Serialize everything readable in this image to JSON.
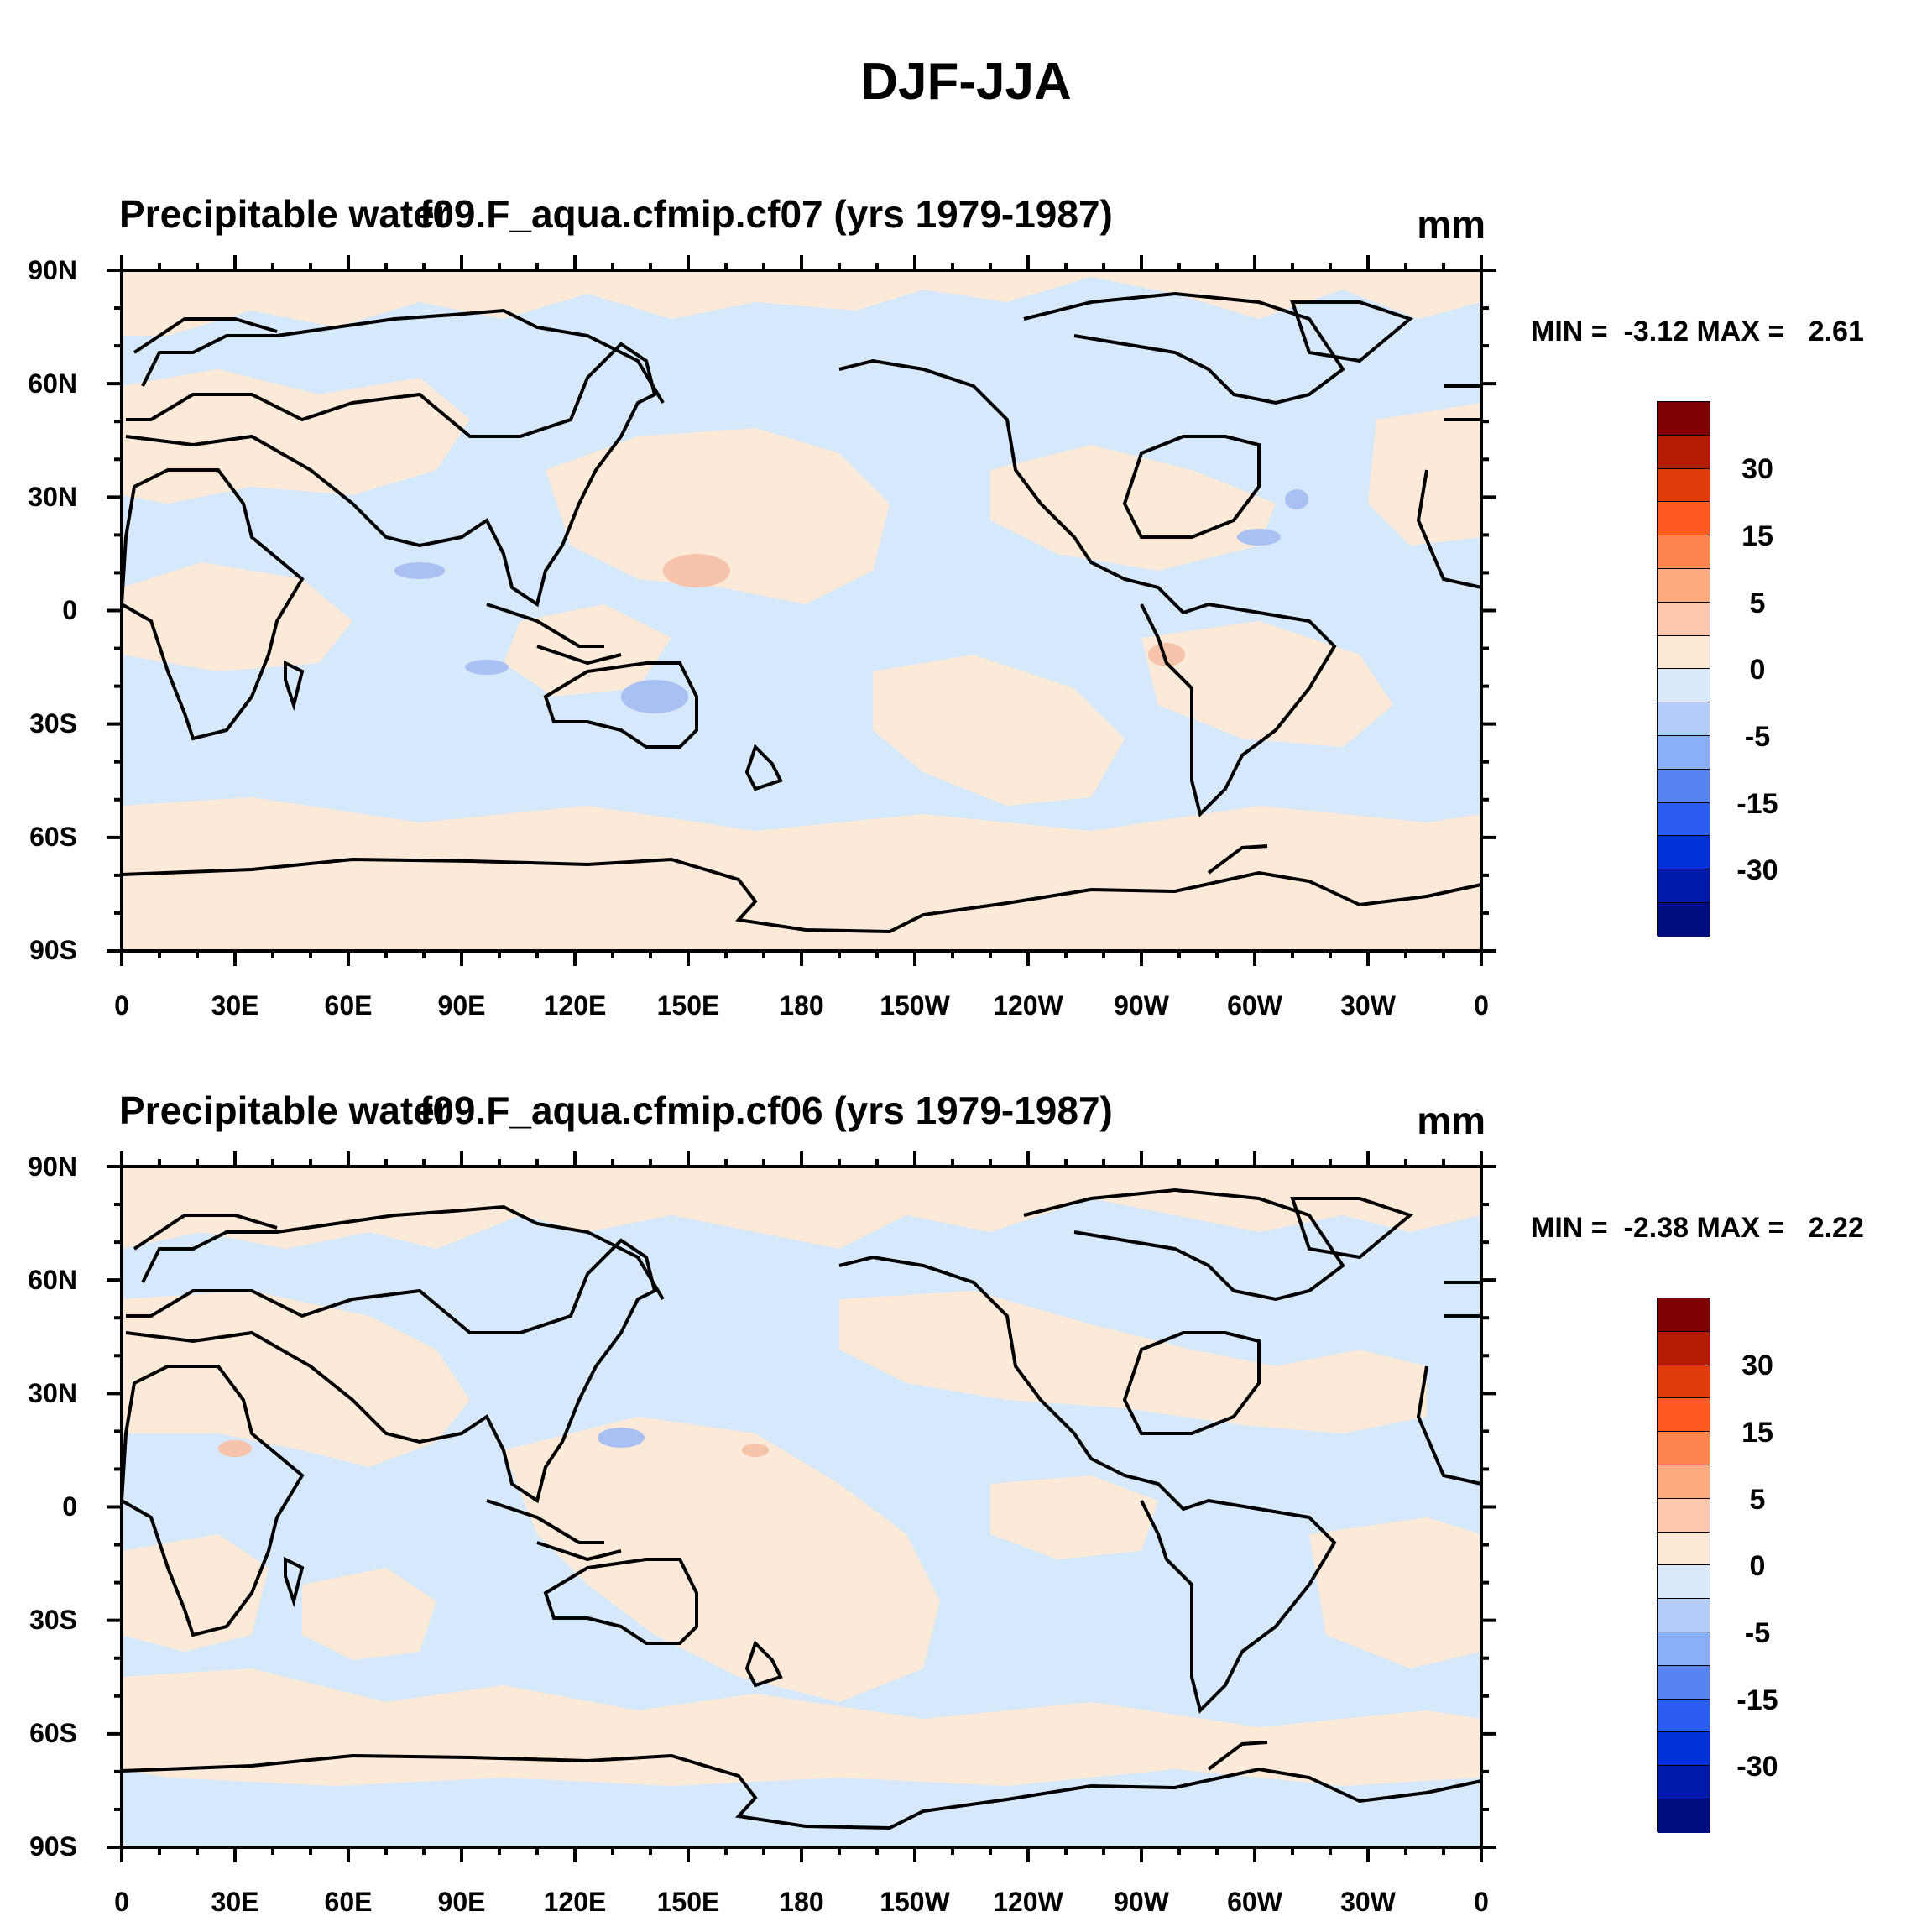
{
  "main_title": "DJF-JJA",
  "chart_data": [
    {
      "type": "heatmap",
      "title_left": "Precipitable water",
      "title_center": "f09.F_aqua.cfmip.cf07 (yrs 1979-1987)",
      "units": "mm",
      "min_label": "MIN =",
      "min_value": "-3.12",
      "max_label": "MAX =",
      "max_value": "2.61",
      "x_ticks": [
        "0",
        "30E",
        "60E",
        "90E",
        "120E",
        "150E",
        "180",
        "150W",
        "120W",
        "90W",
        "60W",
        "30W",
        "0"
      ],
      "y_ticks": [
        "90N",
        "60N",
        "30N",
        "0",
        "30S",
        "60S",
        "90S"
      ],
      "xlim": [
        0,
        360
      ],
      "ylim": [
        -90,
        90
      ],
      "colorbar_labels": [
        "30",
        "15",
        "5",
        "0",
        "-5",
        "-15",
        "-30"
      ]
    },
    {
      "type": "heatmap",
      "title_left": "Precipitable water",
      "title_center": "f09.F_aqua.cfmip.cf06 (yrs 1979-1987)",
      "units": "mm",
      "min_label": "MIN =",
      "min_value": "-2.38",
      "max_label": "MAX =",
      "max_value": "2.22",
      "x_ticks": [
        "0",
        "30E",
        "60E",
        "90E",
        "120E",
        "150E",
        "180",
        "150W",
        "120W",
        "90W",
        "60W",
        "30W",
        "0"
      ],
      "y_ticks": [
        "90N",
        "60N",
        "30N",
        "0",
        "30S",
        "60S",
        "90S"
      ],
      "xlim": [
        0,
        360
      ],
      "ylim": [
        -90,
        90
      ],
      "colorbar_labels": [
        "30",
        "15",
        "5",
        "0",
        "-5",
        "-15",
        "-30"
      ]
    }
  ],
  "colorbar_colors": [
    "#7f0000",
    "#b51b00",
    "#e03c0b",
    "#ff5a1f",
    "#ff8450",
    "#fdaa80",
    "#fdc8ae",
    "#fde8d6",
    "#d9e9fb",
    "#b4ccf8",
    "#8aaef7",
    "#5884f2",
    "#2b5ef0",
    "#0030d8",
    "#0019a8",
    "#000d7f"
  ],
  "field_colors": {
    "positive": "#fde9d7",
    "negative": "#d6e8fb",
    "pos2": "#f7c2aa",
    "neg2": "#a9c0f2"
  }
}
